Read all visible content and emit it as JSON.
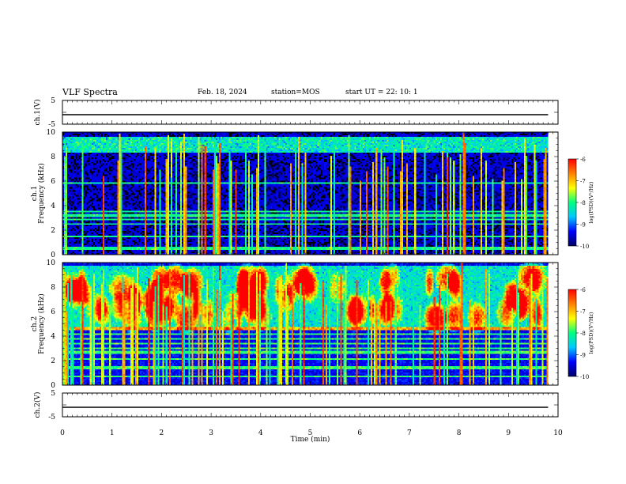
{
  "header": {
    "title": "VLF Spectra",
    "date": "Feb. 18, 2024",
    "station": "station=MOS",
    "start": "start  UT =   22: 10: 1"
  },
  "chart_data": [
    {
      "type": "line",
      "panel": "ch1-waveform",
      "ylabel": "ch.1(V)",
      "ylim": [
        -5,
        5
      ],
      "yticks": [
        "5",
        "-5"
      ],
      "series": [
        {
          "x": [
            0,
            9.8
          ],
          "values": [
            -1,
            -1
          ]
        }
      ]
    },
    {
      "type": "heatmap",
      "panel": "ch1-spectrogram",
      "ylabel": "ch.1\nFrequency (kHz)",
      "ylim": [
        0,
        10
      ],
      "yticks": [
        "0",
        "2",
        "4",
        "6",
        "8",
        "10"
      ],
      "xlim": [
        0,
        9.8
      ],
      "bands_khz": [
        0.5,
        1.5,
        2.5,
        2.9,
        3.2,
        3.5,
        5.8
      ],
      "colorbar": {
        "label": "log(PSD)(V²/Hz)",
        "ticks": [
          "-6",
          "-7",
          "-8",
          "-9",
          "-10"
        ],
        "range": [
          -10,
          -6
        ]
      }
    },
    {
      "type": "heatmap",
      "panel": "ch2-spectrogram",
      "ylabel": "ch.2\nFrequency (kHz)",
      "ylim": [
        0,
        10
      ],
      "yticks": [
        "0",
        "2",
        "4",
        "6",
        "8",
        "10"
      ],
      "xlim": [
        0,
        9.8
      ],
      "bands_khz": [
        0.7,
        1.4,
        2.1,
        2.7,
        3.0,
        3.4,
        3.8,
        4.2,
        4.6
      ],
      "colorbar": {
        "label": "log(PSD)(V²/Hz)",
        "ticks": [
          "-6",
          "-7",
          "-8",
          "-9",
          "-10"
        ],
        "range": [
          -10,
          -6
        ]
      }
    },
    {
      "type": "line",
      "panel": "ch2-waveform",
      "ylabel": "ch.2(V)",
      "ylim": [
        -5,
        5
      ],
      "yticks": [
        "5",
        "-5"
      ],
      "xlabel": "Time (min)",
      "xlim": [
        0,
        10
      ],
      "xticks": [
        "0",
        "1",
        "2",
        "3",
        "4",
        "5",
        "6",
        "7",
        "8",
        "9",
        "10"
      ],
      "series": [
        {
          "x": [
            0,
            9.8
          ],
          "values": [
            -1,
            -1
          ]
        }
      ]
    }
  ],
  "colors": {
    "colormap": [
      "#000064",
      "#0000ff",
      "#00c8ff",
      "#00ff80",
      "#ffff00",
      "#ff8000",
      "#ff0000",
      "#ffffff"
    ],
    "axis": "#000000",
    "background": "#ffffff"
  }
}
